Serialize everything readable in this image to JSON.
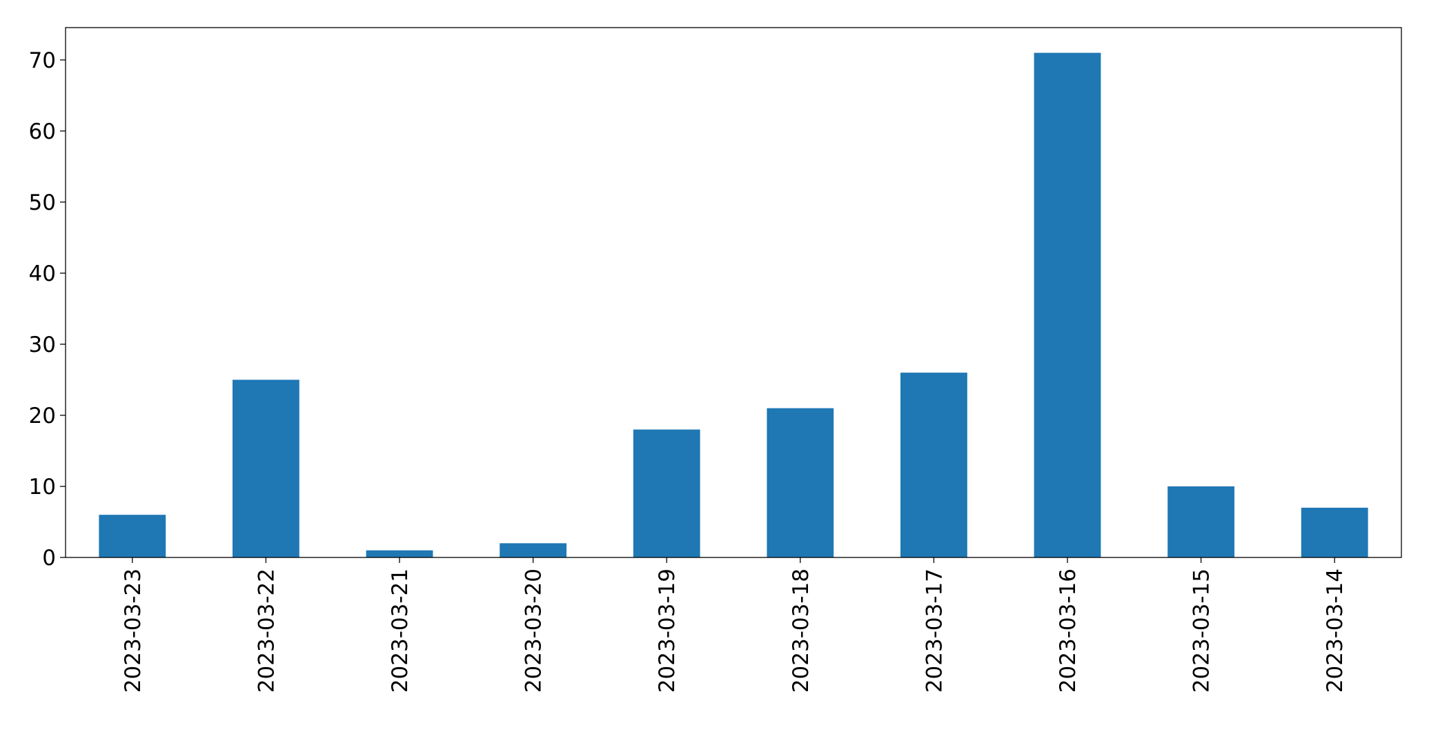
{
  "chart_data": {
    "type": "bar",
    "categories": [
      "2023-03-23",
      "2023-03-22",
      "2023-03-21",
      "2023-03-20",
      "2023-03-19",
      "2023-03-18",
      "2023-03-17",
      "2023-03-16",
      "2023-03-15",
      "2023-03-14"
    ],
    "values": [
      6,
      25,
      1,
      2,
      18,
      21,
      26,
      71,
      10,
      7
    ],
    "color": "#1f77b4",
    "ylim": [
      0,
      74.55
    ],
    "yticks": [
      0,
      10,
      20,
      30,
      40,
      50,
      60,
      70
    ],
    "grid": false
  }
}
